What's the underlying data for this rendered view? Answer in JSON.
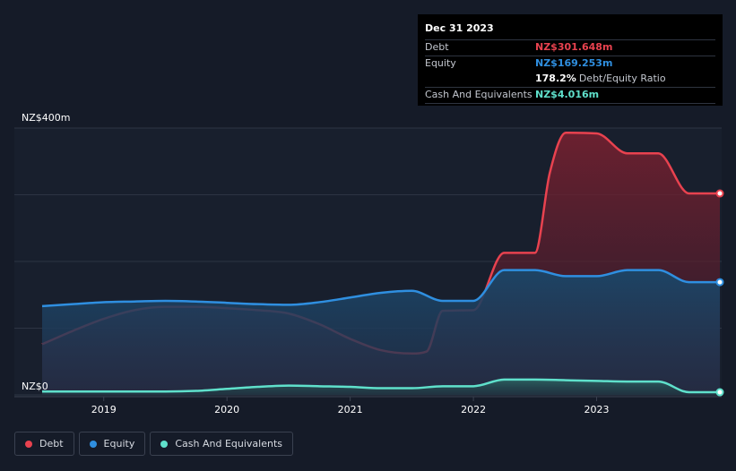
{
  "tooltip": {
    "date": "Dec 31 2023",
    "debt_label": "Debt",
    "debt_value": "NZ$301.648m",
    "equity_label": "Equity",
    "equity_value": "NZ$169.253m",
    "ratio_value": "178.2%",
    "ratio_label": "Debt/Equity Ratio",
    "cash_label": "Cash And Equivalents",
    "cash_value": "NZ$4.016m"
  },
  "colors": {
    "debt": "#e8424f",
    "equity": "#2f8fe0",
    "cash": "#5fe0cb",
    "background": "#151b28"
  },
  "chart_data": {
    "type": "area",
    "y_axis_labels": {
      "top": "NZ$400m",
      "bottom": "NZ$0"
    },
    "ylim": [
      0,
      400
    ],
    "xlim": [
      2018.5,
      2024.0
    ],
    "x_ticks": [
      2019,
      2020,
      2021,
      2022,
      2023
    ],
    "x_tick_labels": [
      "2019",
      "2020",
      "2021",
      "2022",
      "2023"
    ],
    "grid": true,
    "legend_position": "bottom-left",
    "series": [
      {
        "name": "Debt",
        "x": [
          2018.5,
          2018.75,
          2019.0,
          2019.25,
          2019.5,
          2019.75,
          2020.0,
          2020.25,
          2020.5,
          2020.75,
          2021.0,
          2021.25,
          2021.5,
          2021.62,
          2021.75,
          2022.0,
          2022.25,
          2022.5,
          2022.62,
          2022.75,
          2023.0,
          2023.25,
          2023.5,
          2023.75,
          2024.0
        ],
        "values": [
          76,
          96,
          114,
          127,
          132,
          132,
          130,
          127,
          122,
          106,
          84,
          67,
          62,
          65,
          126,
          127,
          213,
          213,
          333,
          393,
          392,
          362,
          362,
          302,
          302
        ]
      },
      {
        "name": "Equity",
        "x": [
          2018.5,
          2018.75,
          2019.0,
          2019.25,
          2019.5,
          2019.75,
          2020.0,
          2020.25,
          2020.5,
          2020.75,
          2021.0,
          2021.25,
          2021.5,
          2021.75,
          2022.0,
          2022.25,
          2022.5,
          2022.75,
          2023.0,
          2023.25,
          2023.5,
          2023.75,
          2024.0
        ],
        "values": [
          133,
          136,
          139,
          140,
          141,
          140,
          138,
          136,
          135,
          139,
          146,
          153,
          156,
          141,
          141,
          187,
          187,
          178,
          178,
          187,
          187,
          169,
          169
        ]
      },
      {
        "name": "Cash And Equivalents",
        "x": [
          2018.5,
          2018.75,
          2019.0,
          2019.25,
          2019.5,
          2019.75,
          2020.0,
          2020.25,
          2020.5,
          2020.75,
          2021.0,
          2021.25,
          2021.5,
          2021.75,
          2022.0,
          2022.25,
          2022.5,
          2022.75,
          2023.0,
          2023.25,
          2023.5,
          2023.75,
          2024.0
        ],
        "values": [
          5,
          5,
          5,
          5,
          5,
          6,
          9,
          12,
          14,
          13,
          12,
          10,
          10,
          13,
          13,
          23,
          23,
          22,
          21,
          20,
          20,
          4,
          4
        ]
      }
    ]
  },
  "legend": {
    "debt": "Debt",
    "equity": "Equity",
    "cash": "Cash And Equivalents"
  }
}
